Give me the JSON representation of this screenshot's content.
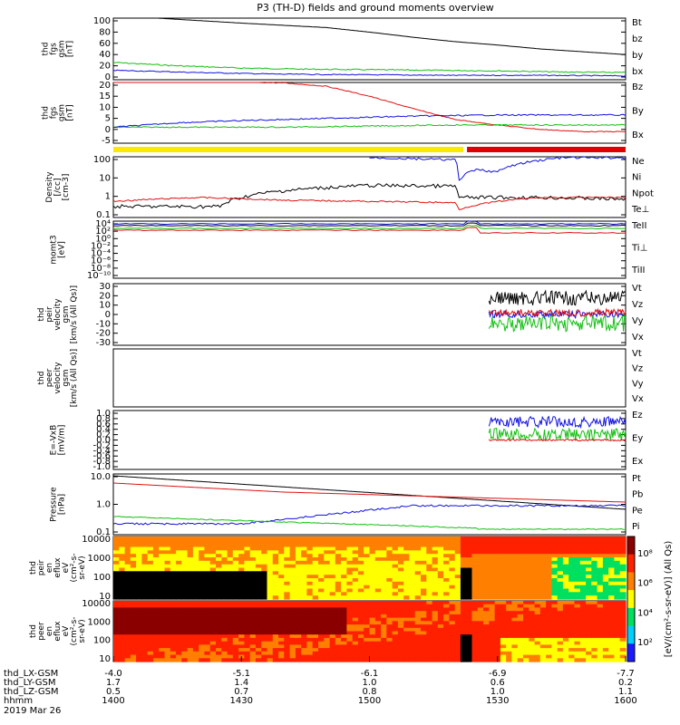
{
  "title": "P3 (TH-D) fields and ground moments overview",
  "chart_data": {
    "type": "line",
    "title": "P3 (TH-D) fields and ground moments overview",
    "x_axis": {
      "rows": [
        {
          "label": "thd_LX-GSM",
          "values": [
            "-4.0",
            "-5.1",
            "-6.1",
            "-6.9",
            "-7.7"
          ]
        },
        {
          "label": "thd_LY-GSM",
          "values": [
            "1.7",
            "1.4",
            "1.0",
            "0.6",
            "0.2"
          ]
        },
        {
          "label": "thd_LZ-GSM",
          "values": [
            "0.5",
            "0.7",
            "0.8",
            "1.0",
            "1.1"
          ]
        },
        {
          "label": "hhmm",
          "values": [
            "1400",
            "1430",
            "1500",
            "1530",
            "1600"
          ]
        }
      ],
      "date": "2019 Mar 26"
    },
    "panels": [
      {
        "id": "fgs",
        "ylabel": [
          "thd",
          "fgs",
          "gsm",
          "[nT]"
        ],
        "ticks": [
          "100",
          "80",
          "60",
          "40",
          "20",
          "0"
        ],
        "legend": [
          {
            "name": "Bt",
            "color": "#000000"
          },
          {
            "name": "bz",
            "color": "#e01010"
          },
          {
            "name": "by",
            "color": "#10c010"
          },
          {
            "name": "bx",
            "color": "#1010e0"
          }
        ],
        "series": [
          {
            "name": "Bt",
            "x": [
              1410,
              1430,
              1450,
              1500,
              1510,
              1520,
              1530,
              1540,
              1550,
              1600
            ],
            "y": [
              105,
              96,
              88,
              80,
              71,
              63,
              57,
              50,
              45,
              40
            ]
          },
          {
            "name": "by",
            "x": [
              1400,
              1415,
              1430,
              1445,
              1500,
              1515,
              1530,
              1545,
              1600
            ],
            "y": [
              26,
              20,
              16,
              14,
              13,
              12,
              11,
              9,
              8
            ]
          },
          {
            "name": "bx",
            "x": [
              1400,
              1420,
              1440,
              1500,
              1520,
              1540,
              1600
            ],
            "y": [
              12,
              8,
              5,
              4,
              3,
              3,
              2
            ]
          },
          {
            "name": "bz",
            "x": [
              1400,
              1430,
              1500,
              1530,
              1600
            ],
            "y": [
              0,
              0,
              0,
              0,
              0
            ]
          }
        ]
      },
      {
        "id": "fgs2",
        "ylabel": [
          "thd",
          "fgs",
          "gsm",
          "[nT]"
        ],
        "ticks": [
          "20",
          "15",
          "10",
          "5",
          "0",
          "-5"
        ],
        "legend": [
          {
            "name": "Bz",
            "color": "#e01010"
          },
          {
            "name": "By",
            "color": "#10c010"
          },
          {
            "name": "Bx",
            "color": "#1010e0"
          }
        ],
        "series": [
          {
            "name": "Bz",
            "x": [
              1400,
              1420,
              1440,
              1450,
              1500,
              1510,
              1520,
              1530,
              1540,
              1550,
              1600
            ],
            "y": [
              22,
              21.8,
              21,
              19.5,
              15,
              9.5,
              4.5,
              2,
              0,
              -1,
              -1
            ]
          },
          {
            "name": "By",
            "x": [
              1400,
              1420,
              1440,
              1500,
              1520,
              1540,
              1600
            ],
            "y": [
              1,
              1,
              1,
              1.5,
              2,
              2,
              2
            ]
          },
          {
            "name": "Bx",
            "x": [
              1400,
              1415,
              1430,
              1450,
              1510,
              1530,
              1600
            ],
            "y": [
              1,
              3,
              4,
              5,
              6,
              6.5,
              6.5
            ]
          }
        ]
      },
      {
        "id": "density",
        "ylabel": [
          "Density",
          "[/cc]",
          "[cm-3]"
        ],
        "ticks": [
          "100",
          "10",
          "1",
          "0.1"
        ],
        "scale": "log",
        "legend": [
          {
            "name": "Ne",
            "color": "#e01010"
          },
          {
            "name": "Ni",
            "color": "#000000"
          },
          {
            "name": "Npot",
            "color": "#1010e0"
          },
          {
            "name": "Te⊥",
            "color": "#e01010"
          }
        ],
        "series": [
          {
            "name": "Ni",
            "x": [
              1400,
              1425,
              1430,
              1440,
              1500,
              1520,
              1521,
              1540,
              1600
            ],
            "y": [
              0.3,
              0.3,
              1,
              2.5,
              5,
              4.5,
              1,
              1,
              0.8
            ]
          },
          {
            "name": "Ne",
            "x": [
              1400,
              1420,
              1440,
              1500,
              1520,
              1521,
              1540,
              1600
            ],
            "y": [
              0.6,
              1,
              0.7,
              0.6,
              0.5,
              0.2,
              1,
              1
            ]
          },
          {
            "name": "Npot",
            "x": [
              1500,
              1520,
              1521,
              1525,
              1530,
              1545,
              1600
            ],
            "y": [
              200,
              150,
              10,
              40,
              30,
              200,
              200
            ]
          }
        ]
      },
      {
        "id": "mom",
        "ylabel": [
          "momt3",
          "[eV]"
        ],
        "ticks": [
          "10⁴",
          "10²",
          "10⁰",
          "10⁻²",
          "10⁻⁴",
          "10⁻⁶",
          "10⁻⁸",
          "10⁻¹⁰"
        ],
        "legend": [
          {
            "name": "TeII",
            "color": "#000000"
          },
          {
            "name": "Ti⊥",
            "color": "#1010e0"
          },
          {
            "name": "TiII",
            "color": "#10c010"
          }
        ]
      },
      {
        "id": "peir",
        "ylabel": [
          "thd",
          "peir",
          "velocity",
          "gsm",
          "[km/s (All Qs)]"
        ],
        "ticks": [
          "30",
          "20",
          "10",
          "0",
          "-10",
          "-20",
          "-30"
        ],
        "legend": [
          {
            "name": "Vt",
            "color": "#000000"
          },
          {
            "name": "Vz",
            "color": "#e01010"
          },
          {
            "name": "Vy",
            "color": "#10c010"
          },
          {
            "name": "Vx",
            "color": "#1010e0"
          }
        ]
      },
      {
        "id": "peer",
        "ylabel": [
          "thd",
          "peer",
          "velocity",
          "gsm",
          "[km/s (All Qs)]"
        ],
        "ticks": [],
        "legend": [
          {
            "name": "Vt",
            "color": "#000000"
          },
          {
            "name": "Vz",
            "color": "#e01010"
          },
          {
            "name": "Vy",
            "color": "#10c010"
          },
          {
            "name": "Vx",
            "color": "#1010e0"
          }
        ]
      },
      {
        "id": "efield",
        "ylabel": [
          "E=-VxB",
          "[mV/m]"
        ],
        "ticks": [
          "1.0",
          "0.8",
          "0.6",
          "0.4",
          "0.2",
          "0.0",
          "-0.2",
          "-0.4",
          "-0.6",
          "-0.8",
          "-1.0"
        ],
        "legend": [
          {
            "name": "Ez",
            "color": "#e01010"
          },
          {
            "name": "Ey",
            "color": "#10c010"
          },
          {
            "name": "Ex",
            "color": "#1010e0"
          }
        ]
      },
      {
        "id": "pressure",
        "ylabel": [
          "Pressure",
          "[nPa]"
        ],
        "ticks": [
          "10.0",
          "1.0",
          "0.1"
        ],
        "legend": [
          {
            "name": "Pt",
            "color": "#000000"
          },
          {
            "name": "Pb",
            "color": "#e01010"
          },
          {
            "name": "Pe",
            "color": "#10c010"
          },
          {
            "name": "Pi",
            "color": "#1010e0"
          }
        ]
      },
      {
        "id": "ispec",
        "ylabel": [
          "thd",
          "peir",
          "en",
          "eflux",
          "eV",
          "(cm²-s-",
          "sr-eV)"
        ],
        "ticks": [
          "10000",
          "1000",
          "100",
          "10"
        ]
      },
      {
        "id": "espec",
        "ylabel": [
          "thd",
          "peer",
          "en",
          "eflux",
          "eV",
          "(cm²-s-",
          "sr-eV)"
        ],
        "ticks": [
          "10000",
          "1000",
          "100",
          "10"
        ]
      }
    ],
    "colorbar": {
      "label": "[eV/(cm²-s-sr-eV)] (All Qs)",
      "ticks": [
        "10⁸",
        "10⁶",
        "10⁴",
        "10²"
      ],
      "colors": [
        "#1a1aff",
        "#00cfff",
        "#00e060",
        "#ffff00",
        "#ff8000",
        "#ff2000",
        "#8a0000"
      ]
    }
  }
}
